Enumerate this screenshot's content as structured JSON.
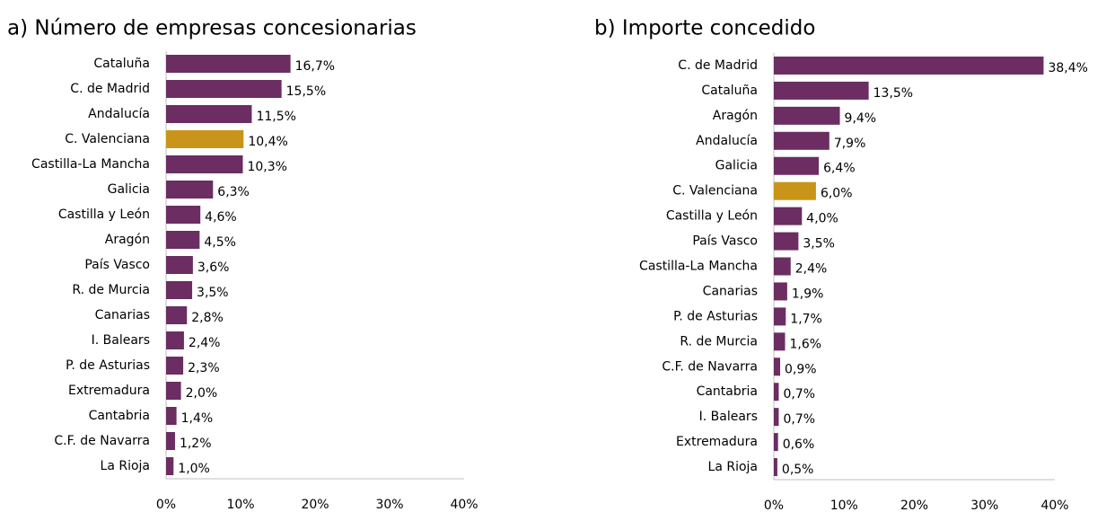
{
  "chart_data": [
    {
      "type": "barh",
      "title": "a) Número de empresas concesionarias",
      "categories": [
        "Cataluña",
        "C. de Madrid",
        "Andalucía",
        "C. Valenciana",
        "Castilla-La Mancha",
        "Galicia",
        "Castilla y León",
        "Aragón",
        "País Vasco",
        "R. de Murcia",
        "Canarias",
        "I. Balears",
        "P. de Asturias",
        "Extremadura",
        "Cantabria",
        "C.F. de Navarra",
        "La Rioja"
      ],
      "values": [
        16.7,
        15.5,
        11.5,
        10.4,
        10.3,
        6.3,
        4.6,
        4.5,
        3.6,
        3.5,
        2.8,
        2.4,
        2.3,
        2.0,
        1.4,
        1.2,
        1.0
      ],
      "value_labels": [
        "16,7%",
        "15,5%",
        "11,5%",
        "10,4%",
        "10,3%",
        "6,3%",
        "4,6%",
        "4,5%",
        "3,6%",
        "3,5%",
        "2,8%",
        "2,4%",
        "2,3%",
        "2,0%",
        "1,4%",
        "1,2%",
        "1,0%"
      ],
      "colors": [
        "#6b2d62",
        "#6b2d62",
        "#6b2d62",
        "#c8951a",
        "#6b2d62",
        "#6b2d62",
        "#6b2d62",
        "#6b2d62",
        "#6b2d62",
        "#6b2d62",
        "#6b2d62",
        "#6b2d62",
        "#6b2d62",
        "#6b2d62",
        "#6b2d62",
        "#6b2d62",
        "#6b2d62"
      ],
      "xlim": [
        0,
        40
      ],
      "xticks": [
        {
          "value": 0,
          "label": "0%"
        },
        {
          "value": 10,
          "label": "10%"
        },
        {
          "value": 20,
          "label": "20%"
        },
        {
          "value": 30,
          "label": "30%"
        },
        {
          "value": 40,
          "label": "40%"
        }
      ]
    },
    {
      "type": "barh",
      "title": "b) Importe concedido",
      "categories": [
        "C. de Madrid",
        "Cataluña",
        "Aragón",
        "Andalucía",
        "Galicia",
        "C. Valenciana",
        "Castilla y León",
        "País Vasco",
        "Castilla-La Mancha",
        "Canarias",
        "P. de Asturias",
        "R. de Murcia",
        "C.F. de Navarra",
        "Cantabria",
        "I. Balears",
        "Extremadura",
        "La Rioja"
      ],
      "values": [
        38.4,
        13.5,
        9.4,
        7.9,
        6.4,
        6.0,
        4.0,
        3.5,
        2.4,
        1.9,
        1.7,
        1.6,
        0.9,
        0.7,
        0.7,
        0.6,
        0.5
      ],
      "value_labels": [
        "38,4%",
        "13,5%",
        "9,4%",
        "7,9%",
        "6,4%",
        "6,0%",
        "4,0%",
        "3,5%",
        "2,4%",
        "1,9%",
        "1,7%",
        "1,6%",
        "0,9%",
        "0,7%",
        "0,7%",
        "0,6%",
        "0,5%"
      ],
      "colors": [
        "#6b2d62",
        "#6b2d62",
        "#6b2d62",
        "#6b2d62",
        "#6b2d62",
        "#c8951a",
        "#6b2d62",
        "#6b2d62",
        "#6b2d62",
        "#6b2d62",
        "#6b2d62",
        "#6b2d62",
        "#6b2d62",
        "#6b2d62",
        "#6b2d62",
        "#6b2d62",
        "#6b2d62"
      ],
      "xlim": [
        0,
        40
      ],
      "xticks": [
        {
          "value": 0,
          "label": "0%"
        },
        {
          "value": 10,
          "label": "10%"
        },
        {
          "value": 20,
          "label": "20%"
        },
        {
          "value": 30,
          "label": "30%"
        },
        {
          "value": 40,
          "label": "40%"
        }
      ]
    }
  ]
}
